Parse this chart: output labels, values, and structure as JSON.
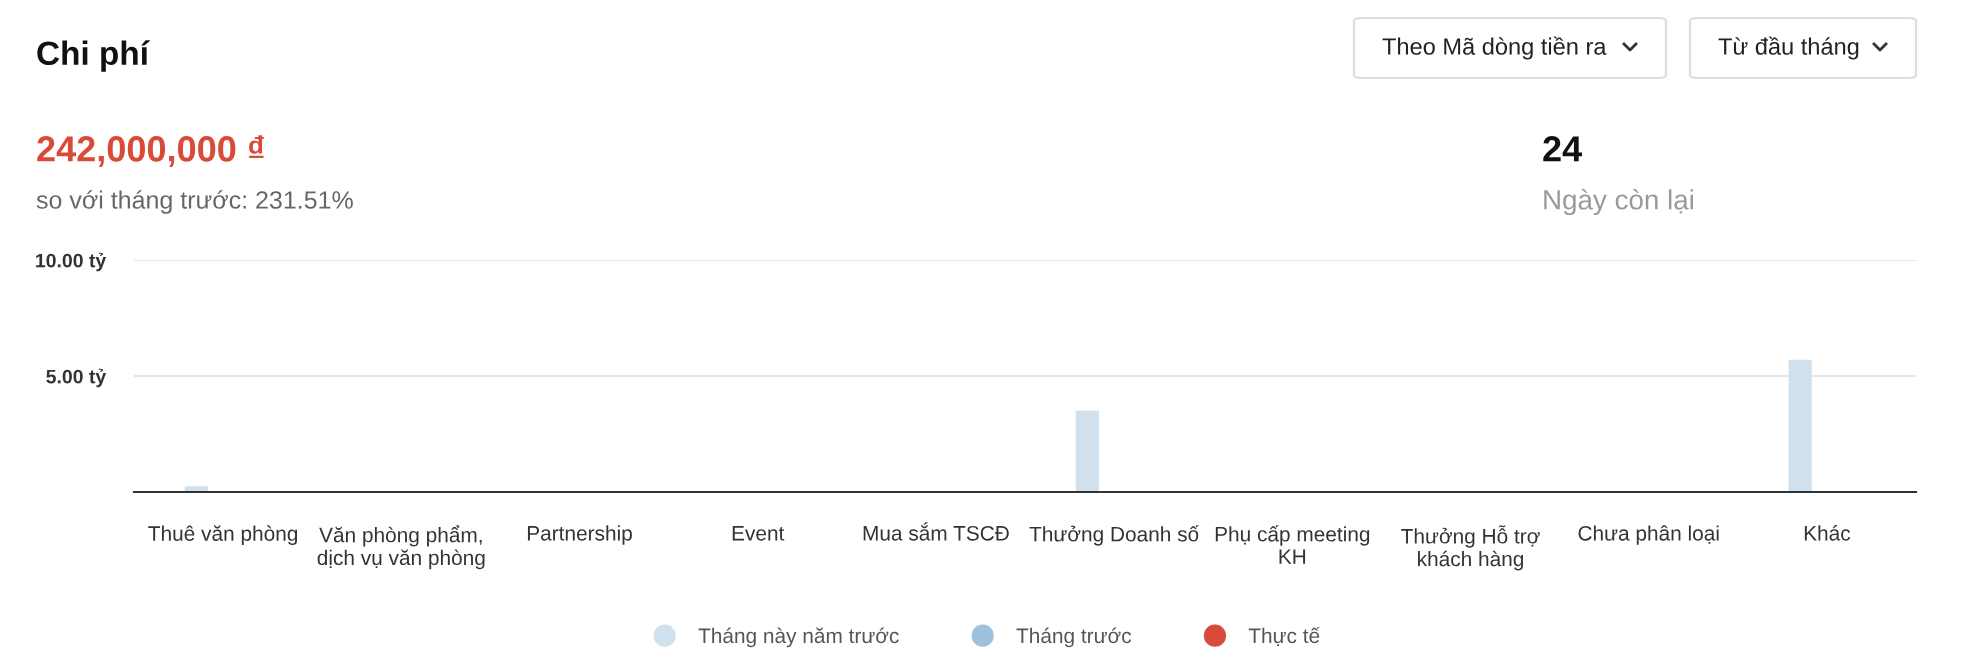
{
  "chart_data": {
    "type": "bar",
    "title": "Chi phí",
    "annotations": [
      "Theo Mã dòng tiền ra",
      "Từ đầu tháng",
      "242,000,000 ₫",
      "so với tháng trước: 231.51%",
      "24",
      "Ngày còn lại"
    ],
    "categories": [
      "Thuê văn phòng",
      "Văn phòng phẩm,\ndịch vụ văn phòng",
      "Partnership",
      "Event",
      "Mua sắm TSCĐ",
      "Thưởng Doanh số",
      "Phụ cấp meeting\nKH",
      "Thưởng Hỗ trợ\nkhách hàng",
      "Chưa phân loại",
      "Khác"
    ],
    "series": [
      {
        "name": "Tháng này năm trước",
        "color": "#d0e1ed",
        "values": [
          0.25,
          0,
          0,
          0,
          0,
          3.5,
          0,
          0,
          0,
          5.7
        ]
      },
      {
        "name": "Tháng trước",
        "color": "#9fc1dc",
        "values": [
          0,
          0,
          0,
          0,
          0,
          0,
          0,
          0,
          0,
          0
        ]
      },
      {
        "name": "Thực tế",
        "color": "#d94a38",
        "values": [
          0,
          0,
          0,
          0,
          0,
          0,
          0,
          0,
          0,
          0
        ]
      }
    ],
    "ylim": [
      0,
      10
    ],
    "yticks": [
      {
        "value": 5,
        "label": "5.00 tỷ"
      },
      {
        "value": 10,
        "label": "10.00 tỷ"
      }
    ],
    "grid": "y",
    "legend": "bottom",
    "marker": "circle"
  }
}
